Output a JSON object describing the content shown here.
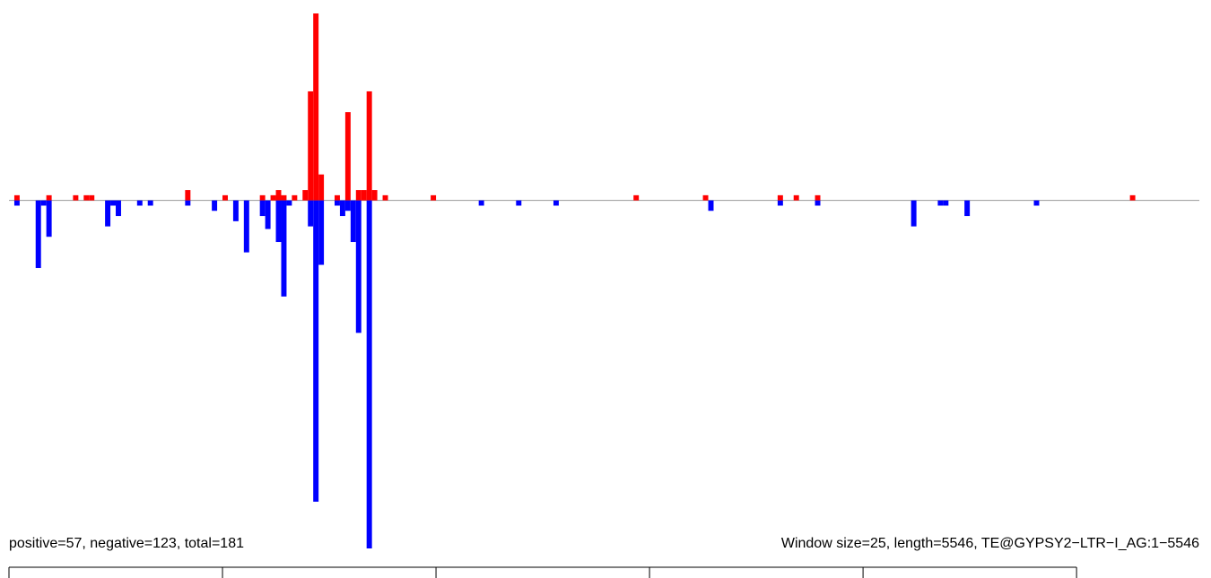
{
  "chart_data": {
    "type": "bar",
    "annotations": [
      "positive=57, negative=123, total=181",
      "Window size=25, length=5546, TE@GYPSY2−LTR−I_AG:1−5546"
    ],
    "xlim": [
      0,
      5575
    ],
    "ylim": [
      -67,
      36
    ],
    "bar_width": 25,
    "xticks": [
      0,
      1000,
      2000,
      3000,
      4000,
      5000
    ],
    "series": [
      {
        "color": "#ff0000",
        "x": [
          25,
          175,
          300,
          350,
          375,
          825,
          1000,
          1175,
          1225,
          1250,
          1275,
          1325,
          1375,
          1400,
          1425,
          1450,
          1525,
          1575,
          1625,
          1650,
          1675,
          1700,
          1750,
          1975,
          2925,
          3250,
          3600,
          3675,
          3775,
          5250
        ],
        "values": [
          1,
          1,
          1,
          1,
          1,
          2,
          1,
          1,
          1,
          2,
          1,
          1,
          2,
          21,
          36,
          5,
          1,
          17,
          2,
          2,
          21,
          2,
          1,
          1,
          1,
          1,
          1,
          1,
          1,
          1
        ]
      },
      {
        "color": "#0000ff",
        "x": [
          25,
          125,
          150,
          175,
          450,
          475,
          500,
          600,
          650,
          825,
          950,
          1050,
          1100,
          1175,
          1200,
          1250,
          1275,
          1300,
          1400,
          1425,
          1450,
          1525,
          1550,
          1575,
          1600,
          1625,
          1675,
          2200,
          2375,
          2550,
          3275,
          3600,
          3775,
          4225,
          4350,
          4375,
          4475,
          4800
        ],
        "values": [
          -1,
          -13,
          -1,
          -7,
          -5,
          -1,
          -3,
          -1,
          -1,
          -1,
          -2,
          -4,
          -10,
          -3,
          -5.5,
          -8,
          -18.5,
          -1,
          -5,
          -58,
          -12.4,
          -1,
          -3,
          -2,
          -8,
          -25.5,
          -67,
          -1,
          -1,
          -1,
          -2,
          -1,
          -1,
          -5,
          -1,
          -1,
          -3,
          -1
        ]
      }
    ]
  }
}
